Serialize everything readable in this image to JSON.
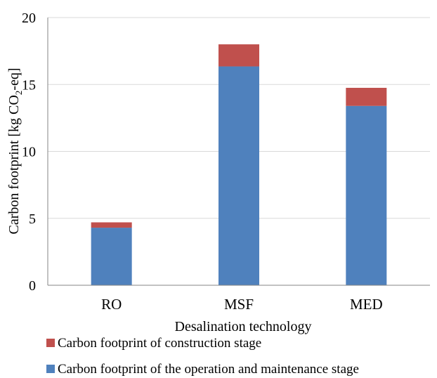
{
  "chart_data": {
    "type": "bar",
    "stacked": true,
    "categories": [
      "RO",
      "MSF",
      "MED"
    ],
    "series": [
      {
        "name": "Carbon footprint of the operation and maintenance stage",
        "values": [
          4.3,
          16.35,
          13.4
        ],
        "color": "#4F81BD"
      },
      {
        "name": "Carbon footprint of construction stage",
        "values": [
          0.4,
          1.65,
          1.35
        ],
        "color": "#C0504D"
      }
    ],
    "xlabel": "Desalination technology",
    "ylabel": {
      "pre": "Carbon footprint [kg CO",
      "sub": "2",
      "post": "-eq]"
    },
    "ylim": [
      0,
      20
    ],
    "yticks": [
      "0",
      "5",
      "10",
      "15",
      "20"
    ],
    "grid": true,
    "legend_position": "bottom-left"
  }
}
